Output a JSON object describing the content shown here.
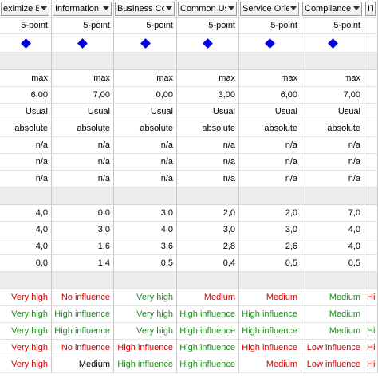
{
  "columns": [
    {
      "header": "eximize Be..."
    },
    {
      "header": "Information ..."
    },
    {
      "header": "Business Co..."
    },
    {
      "header": "Common Use..."
    },
    {
      "header": "Service Orie..."
    },
    {
      "header": "Compliance ..."
    },
    {
      "header": "IT P"
    }
  ],
  "scale_row": [
    "5-point",
    "5-point",
    "5-point",
    "5-point",
    "5-point",
    "5-point",
    ""
  ],
  "direction_row": [
    "max",
    "max",
    "max",
    "max",
    "max",
    "max",
    ""
  ],
  "weight_row": [
    "6,00",
    "7,00",
    "0,00",
    "3,00",
    "6,00",
    "7,00",
    ""
  ],
  "preference_row": [
    "Usual",
    "Usual",
    "Usual",
    "Usual",
    "Usual",
    "Usual",
    ""
  ],
  "threshold_row": [
    "absolute",
    "absolute",
    "absolute",
    "absolute",
    "absolute",
    "absolute",
    ""
  ],
  "na_rows": [
    [
      "n/a",
      "n/a",
      "n/a",
      "n/a",
      "n/a",
      "n/a",
      ""
    ],
    [
      "n/a",
      "n/a",
      "n/a",
      "n/a",
      "n/a",
      "n/a",
      ""
    ],
    [
      "n/a",
      "n/a",
      "n/a",
      "n/a",
      "n/a",
      "n/a",
      ""
    ]
  ],
  "value_rows": [
    [
      "4,0",
      "0,0",
      "3,0",
      "2,0",
      "2,0",
      "7,0",
      ""
    ],
    [
      "4,0",
      "3,0",
      "4,0",
      "3,0",
      "3,0",
      "4,0",
      ""
    ],
    [
      "4,0",
      "1,6",
      "3,6",
      "2,8",
      "2,6",
      "4,0",
      ""
    ],
    [
      "0,0",
      "1,4",
      "0,5",
      "0,4",
      "0,5",
      "0,5",
      ""
    ]
  ],
  "influence_rows": [
    [
      {
        "text": "Very high",
        "color": "red"
      },
      {
        "text": "No influence",
        "color": "red"
      },
      {
        "text": "Very high",
        "color": "green"
      },
      {
        "text": "Medium",
        "color": "red"
      },
      {
        "text": "Medium",
        "color": "red"
      },
      {
        "text": "Medium",
        "color": "green"
      },
      {
        "text": "Hi",
        "color": "red"
      }
    ],
    [
      {
        "text": "Very high",
        "color": "green"
      },
      {
        "text": "High influence",
        "color": "green"
      },
      {
        "text": "Very high",
        "color": "green"
      },
      {
        "text": "High influence",
        "color": "green"
      },
      {
        "text": "High influence",
        "color": "green"
      },
      {
        "text": "Medium",
        "color": "green"
      },
      {
        "text": "",
        "color": "green"
      }
    ],
    [
      {
        "text": "Very high",
        "color": "green"
      },
      {
        "text": "High influence",
        "color": "green"
      },
      {
        "text": "Very high",
        "color": "green"
      },
      {
        "text": "High influence",
        "color": "green"
      },
      {
        "text": "High influence",
        "color": "green"
      },
      {
        "text": "Medium",
        "color": "green"
      },
      {
        "text": "Hi",
        "color": "green"
      }
    ],
    [
      {
        "text": "Very high",
        "color": "red"
      },
      {
        "text": "No influence",
        "color": "red"
      },
      {
        "text": "High influence",
        "color": "red"
      },
      {
        "text": "High influence",
        "color": "green"
      },
      {
        "text": "High influence",
        "color": "red"
      },
      {
        "text": "Low influence",
        "color": "red"
      },
      {
        "text": "Hi",
        "color": "red"
      }
    ],
    [
      {
        "text": "Very high",
        "color": "red"
      },
      {
        "text": "Medium",
        "color": "black"
      },
      {
        "text": "High influence",
        "color": "green"
      },
      {
        "text": "High influence",
        "color": "green"
      },
      {
        "text": "Medium",
        "color": "red"
      },
      {
        "text": "Low influence",
        "color": "red"
      },
      {
        "text": "Hi",
        "color": "red"
      }
    ]
  ],
  "colors": {
    "green": "#228b22",
    "red": "#d40000",
    "diamond": "#0000dd",
    "separator": "#ececec"
  },
  "icons": {
    "header_dropdown": "chevron-down-icon",
    "direction_marker": "blue-diamond-icon"
  }
}
